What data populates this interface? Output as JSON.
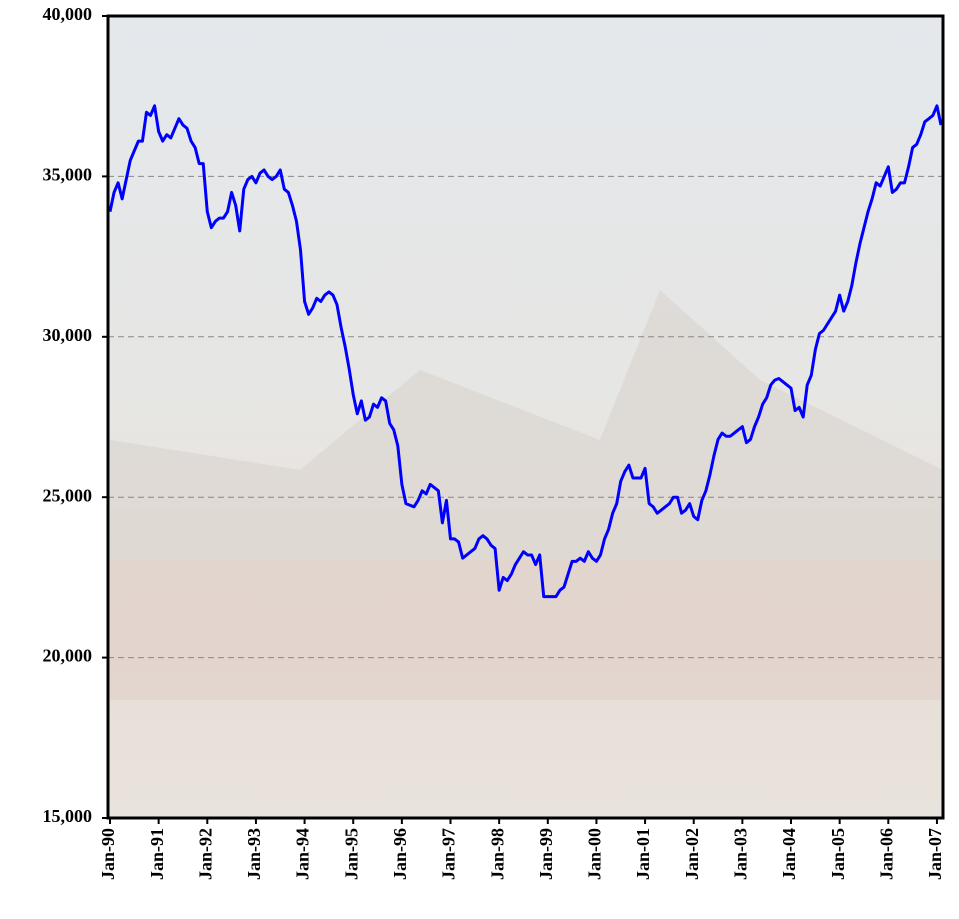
{
  "chart_data": {
    "type": "line",
    "categories": [
      "Jan-90",
      null,
      null,
      null,
      null,
      null,
      null,
      null,
      null,
      null,
      null,
      null,
      "Jan-91",
      null,
      null,
      null,
      null,
      null,
      null,
      null,
      null,
      null,
      null,
      null,
      "Jan-92",
      null,
      null,
      null,
      null,
      null,
      null,
      null,
      null,
      null,
      null,
      null,
      "Jan-93",
      null,
      null,
      null,
      null,
      null,
      null,
      null,
      null,
      null,
      null,
      null,
      "Jan-94",
      null,
      null,
      null,
      null,
      null,
      null,
      null,
      null,
      null,
      null,
      null,
      "Jan-95",
      null,
      null,
      null,
      null,
      null,
      null,
      null,
      null,
      null,
      null,
      null,
      "Jan-96",
      null,
      null,
      null,
      null,
      null,
      null,
      null,
      null,
      null,
      null,
      null,
      "Jan-97",
      null,
      null,
      null,
      null,
      null,
      null,
      null,
      null,
      null,
      null,
      null,
      "Jan-98",
      null,
      null,
      null,
      null,
      null,
      null,
      null,
      null,
      null,
      null,
      null,
      "Jan-99",
      null,
      null,
      null,
      null,
      null,
      null,
      null,
      null,
      null,
      null,
      null,
      "Jan-00",
      null,
      null,
      null,
      null,
      null,
      null,
      null,
      null,
      null,
      null,
      null,
      "Jan-01",
      null,
      null,
      null,
      null,
      null,
      null,
      null,
      null,
      null,
      null,
      null,
      "Jan-02",
      null,
      null,
      null,
      null,
      null,
      null,
      null,
      null,
      null,
      null,
      null,
      "Jan-03",
      null,
      null,
      null,
      null,
      null,
      null,
      null,
      null,
      null,
      null,
      null,
      "Jan-04",
      null,
      null,
      null,
      null,
      null,
      null,
      null,
      null,
      null,
      null,
      null,
      "Jan-05",
      null,
      null,
      null,
      null,
      null,
      null,
      null,
      null,
      null,
      null,
      null,
      "Jan-06",
      null,
      null,
      null,
      null,
      null,
      null,
      null,
      null,
      null,
      null,
      null,
      "Jan-07",
      null
    ],
    "values": [
      33900,
      34500,
      34800,
      34300,
      34900,
      35500,
      35800,
      36100,
      36100,
      37000,
      36900,
      37200,
      36400,
      36100,
      36300,
      36200,
      36500,
      36800,
      36600,
      36500,
      36100,
      35900,
      35400,
      35400,
      33900,
      33400,
      33600,
      33700,
      33700,
      33900,
      34500,
      34100,
      33300,
      34600,
      34900,
      35000,
      34800,
      35100,
      35200,
      35000,
      34900,
      35000,
      35200,
      34600,
      34500,
      34100,
      33600,
      32700,
      31100,
      30700,
      30900,
      31200,
      31100,
      31300,
      31400,
      31300,
      31000,
      30300,
      29700,
      29000,
      28200,
      27600,
      28000,
      27400,
      27500,
      27900,
      27800,
      28100,
      28000,
      27300,
      27100,
      26600,
      25400,
      24800,
      24750,
      24700,
      24900,
      25200,
      25100,
      25400,
      25300,
      25200,
      24200,
      24900,
      23700,
      23700,
      23600,
      23100,
      23200,
      23300,
      23400,
      23700,
      23800,
      23700,
      23500,
      23400,
      22100,
      22500,
      22400,
      22600,
      22900,
      23100,
      23300,
      23200,
      23200,
      22900,
      23200,
      21900,
      21900,
      21900,
      21900,
      22100,
      22200,
      22600,
      23000,
      23000,
      23100,
      23000,
      23300,
      23100,
      23000,
      23200,
      23700,
      24000,
      24500,
      24800,
      25500,
      25800,
      26000,
      25600,
      25600,
      25600,
      25900,
      24800,
      24700,
      24500,
      24600,
      24700,
      24800,
      25000,
      25000,
      24500,
      24600,
      24800,
      24400,
      24300,
      24900,
      25200,
      25700,
      26300,
      26800,
      27000,
      26900,
      26900,
      27000,
      27100,
      27200,
      26700,
      26800,
      27200,
      27500,
      27900,
      28100,
      28500,
      28650,
      28700,
      28600,
      28500,
      28400,
      27700,
      27800,
      27500,
      28500,
      28800,
      29600,
      30100,
      30200,
      30400,
      30600,
      30800,
      31300,
      30800,
      31100,
      31600,
      32300,
      32900,
      33400,
      33900,
      34300,
      34800,
      34700,
      35000,
      35300,
      34500,
      34600,
      34800,
      34800,
      35300,
      35900,
      36000,
      36300,
      36700,
      36800,
      36900,
      37200,
      36600
    ],
    "color": "#0000ff",
    "ylim": [
      15000,
      40000
    ],
    "yticks": [
      {
        "value": 15000,
        "label": "15,000"
      },
      {
        "value": 20000,
        "label": "20,000"
      },
      {
        "value": 25000,
        "label": "25,000"
      },
      {
        "value": 30000,
        "label": "30,000"
      },
      {
        "value": 35000,
        "label": "35,000"
      },
      {
        "value": 40000,
        "label": "40,000"
      }
    ],
    "grid": true
  }
}
